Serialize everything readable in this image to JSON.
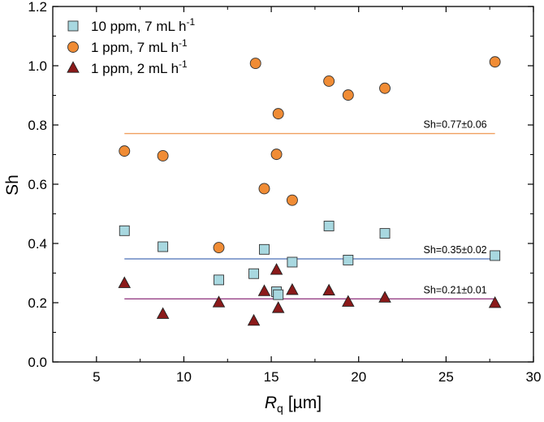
{
  "chart_data": {
    "type": "scatter",
    "title": "",
    "xlabel_main": "R",
    "xlabel_sub": "q",
    "xlabel_unit": "[µm]",
    "ylabel": "Sh",
    "xlim": [
      2.5,
      30
    ],
    "ylim": [
      0.0,
      1.2
    ],
    "xticks": [
      "5",
      "10",
      "15",
      "20",
      "25",
      "30"
    ],
    "yticks": [
      "0.0",
      "0.2",
      "0.4",
      "0.6",
      "0.8",
      "1.0",
      "1.2"
    ],
    "grid": false,
    "legend_position": "top-left",
    "series": [
      {
        "name_main": "10 ppm, 7 mL h",
        "name_sup": "-1",
        "marker": "square",
        "color": "#a8d8e0",
        "x": [
          6.6,
          8.8,
          12.0,
          14.0,
          14.6,
          15.3,
          15.4,
          16.2,
          18.3,
          19.4,
          21.5,
          27.8
        ],
        "y": [
          0.443,
          0.389,
          0.277,
          0.298,
          0.38,
          0.237,
          0.227,
          0.337,
          0.459,
          0.344,
          0.434,
          0.359
        ]
      },
      {
        "name_main": "1 ppm, 7 mL h",
        "name_sup": "-1",
        "marker": "circle",
        "color": "#f08c35",
        "x": [
          6.6,
          8.8,
          12.0,
          14.1,
          14.6,
          15.3,
          15.4,
          16.2,
          18.3,
          19.4,
          21.5,
          27.8
        ],
        "y": [
          0.712,
          0.696,
          0.386,
          1.008,
          0.585,
          0.701,
          0.838,
          0.546,
          0.948,
          0.901,
          0.924,
          1.013
        ]
      },
      {
        "name_main": "1 ppm, 2 mL h",
        "name_sup": "-1",
        "marker": "triangle",
        "color": "#8b1a1a",
        "x": [
          6.6,
          8.8,
          12.0,
          14.0,
          14.6,
          15.3,
          15.4,
          16.2,
          18.3,
          19.4,
          21.5,
          27.8
        ],
        "y": [
          0.265,
          0.161,
          0.2,
          0.138,
          0.238,
          0.31,
          0.181,
          0.242,
          0.24,
          0.202,
          0.216,
          0.198
        ]
      }
    ],
    "mean_lines": [
      {
        "label": "Sh=0.77±0.06",
        "y": 0.771,
        "x_start": 6.6,
        "x_end": 27.8,
        "color": "#f0a060"
      },
      {
        "label": "Sh=0.35±0.02",
        "y": 0.348,
        "x_start": 6.6,
        "x_end": 27.8,
        "color": "#4a6fb8"
      },
      {
        "label": "Sh=0.21±0.01",
        "y": 0.213,
        "x_start": 6.6,
        "x_end": 27.8,
        "color": "#8b2d7a"
      }
    ]
  }
}
